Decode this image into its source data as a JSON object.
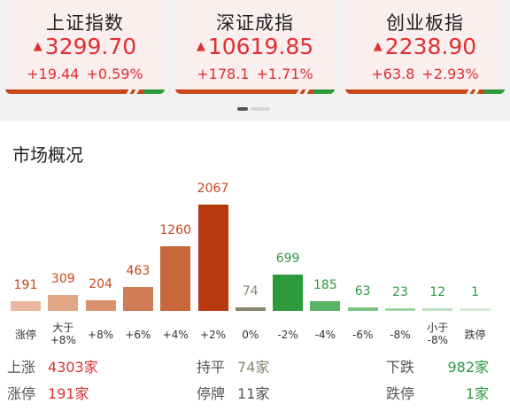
{
  "indices": [
    {
      "name": "上证指数",
      "price": "3299.70",
      "change": "+19.44",
      "pct": "+0.59%"
    },
    {
      "name": "深证成指",
      "price": "10619.85",
      "change": "+178.1",
      "pct": "+1.71%"
    },
    {
      "name": "创业板指",
      "price": "2238.90",
      "change": "+63.8",
      "pct": "+2.93%"
    }
  ],
  "market": {
    "title": "市场概况",
    "stats": {
      "up_label": "上涨",
      "up_value": "4303家",
      "flat_label": "持平",
      "flat_value": "74家",
      "down_label": "下跌",
      "down_value": "982家",
      "limit_up_label": "涨停",
      "limit_up_value": "191家",
      "suspended_label": "停牌",
      "suspended_value": "11家",
      "limit_down_label": "跌停",
      "limit_down_value": "1家"
    }
  },
  "colors": {
    "up": "#e03030",
    "down": "#2d9a3c",
    "flat": "#8a8570",
    "accent": "#c8471a"
  },
  "chart_data": {
    "type": "bar",
    "categories": [
      "涨停",
      "大于+8%",
      "+8%",
      "+6%",
      "+4%",
      "+2%",
      "0%",
      "-2%",
      "-4%",
      "-6%",
      "-8%",
      "小于-8%",
      "跌停"
    ],
    "values": [
      191,
      309,
      204,
      463,
      1260,
      2067,
      74,
      699,
      185,
      63,
      23,
      12,
      1
    ],
    "value_labels": [
      "191",
      "309",
      "204",
      "463",
      "1260",
      "2067",
      "74",
      "699",
      "185",
      "63",
      "23",
      "12",
      "1"
    ],
    "label_lines": [
      [
        "涨停"
      ],
      [
        "大于",
        "+8%"
      ],
      [
        "+8%"
      ],
      [
        "+6%"
      ],
      [
        "+4%"
      ],
      [
        "+2%"
      ],
      [
        "0%"
      ],
      [
        "-2%"
      ],
      [
        "-4%"
      ],
      [
        "-6%"
      ],
      [
        "-8%"
      ],
      [
        "小于",
        "-8%"
      ],
      [
        "跌停"
      ]
    ],
    "bar_colors": [
      "#e8b8a0",
      "#e0a585",
      "#d99270",
      "#d07c55",
      "#c8673c",
      "#b83a10",
      "#8a8570",
      "#2d9a3c",
      "#58b564",
      "#7cc584",
      "#9fd3a4",
      "#bfe0c2",
      "#d4ead6"
    ],
    "value_colors": [
      "#c8471a",
      "#c8471a",
      "#c8471a",
      "#c8471a",
      "#c8471a",
      "#c8471a",
      "#8a8570",
      "#2d9a3c",
      "#2d9a3c",
      "#2d9a3c",
      "#2d9a3c",
      "#2d9a3c",
      "#2d9a3c"
    ]
  }
}
